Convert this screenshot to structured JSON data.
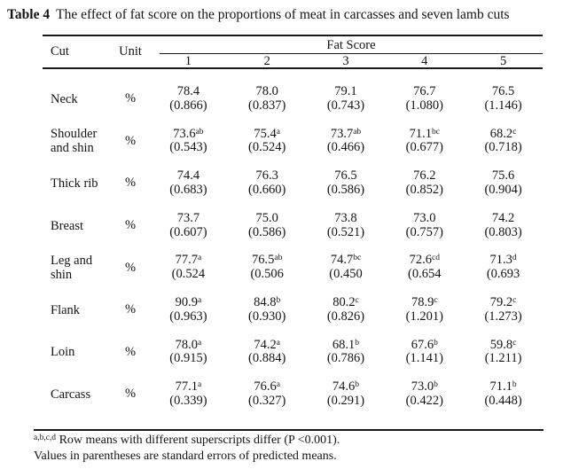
{
  "title": {
    "label": "Table 4",
    "text": "The effect of fat score on the proportions of meat in carcasses and seven lamb cuts"
  },
  "table": {
    "headers": {
      "cut": "Cut",
      "unit": "Unit",
      "group": "Fat Score",
      "scores": [
        "1",
        "2",
        "3",
        "4",
        "5"
      ]
    },
    "rows": [
      {
        "cut": "Neck",
        "unit": "%",
        "cells": [
          {
            "mean": "78.4",
            "sup": "",
            "se": "(0.866)"
          },
          {
            "mean": "78.0",
            "sup": "",
            "se": "(0.837)"
          },
          {
            "mean": "79.1",
            "sup": "",
            "se": "(0.743)"
          },
          {
            "mean": "76.7",
            "sup": "",
            "se": "(1.080)"
          },
          {
            "mean": "76.5",
            "sup": "",
            "se": "(1.146)"
          }
        ]
      },
      {
        "cut": "Shoulder and shin",
        "unit": "%",
        "cells": [
          {
            "mean": "73.6",
            "sup": "ab",
            "se": "(0.543)"
          },
          {
            "mean": "75.4",
            "sup": "a",
            "se": "(0.524)"
          },
          {
            "mean": "73.7",
            "sup": "ab",
            "se": "(0.466)"
          },
          {
            "mean": "71.1",
            "sup": "bc",
            "se": "(0.677)"
          },
          {
            "mean": "68.2",
            "sup": "c",
            "se": "(0.718)"
          }
        ]
      },
      {
        "cut": "Thick rib",
        "unit": "%",
        "cells": [
          {
            "mean": "74.4",
            "sup": "",
            "se": "(0.683)"
          },
          {
            "mean": "76.3",
            "sup": "",
            "se": "(0.660)"
          },
          {
            "mean": "76.5",
            "sup": "",
            "se": "(0.586)"
          },
          {
            "mean": "76.2",
            "sup": "",
            "se": "(0.852)"
          },
          {
            "mean": "75.6",
            "sup": "",
            "se": "(0.904)"
          }
        ]
      },
      {
        "cut": "Breast",
        "unit": "%",
        "cells": [
          {
            "mean": "73.7",
            "sup": "",
            "se": "(0.607)"
          },
          {
            "mean": "75.0",
            "sup": "",
            "se": "(0.586)"
          },
          {
            "mean": "73.8",
            "sup": "",
            "se": "(0.521)"
          },
          {
            "mean": "73.0",
            "sup": "",
            "se": "(0.757)"
          },
          {
            "mean": "74.2",
            "sup": "",
            "se": "(0.803)"
          }
        ]
      },
      {
        "cut": "Leg and shin",
        "unit": "%",
        "cells": [
          {
            "mean": "77.7",
            "sup": "a",
            "se": "(0.524"
          },
          {
            "mean": "76.5",
            "sup": "ab",
            "se": "(0.506"
          },
          {
            "mean": "74.7",
            "sup": "bc",
            "se": "(0.450"
          },
          {
            "mean": "72.6",
            "sup": "cd",
            "se": "(0.654"
          },
          {
            "mean": "71.3",
            "sup": "d",
            "se": "(0.693"
          }
        ]
      },
      {
        "cut": "Flank",
        "unit": "%",
        "cells": [
          {
            "mean": "90.9",
            "sup": "a",
            "se": "(0.963)"
          },
          {
            "mean": "84.8",
            "sup": "b",
            "se": "(0.930)"
          },
          {
            "mean": "80.2",
            "sup": "c",
            "se": "(0.826)"
          },
          {
            "mean": "78.9",
            "sup": "c",
            "se": "(1.201)"
          },
          {
            "mean": "79.2",
            "sup": "c",
            "se": "(1.273)"
          }
        ]
      },
      {
        "cut": "Loin",
        "unit": "%",
        "cells": [
          {
            "mean": "78.0",
            "sup": "a",
            "se": "(0.915)"
          },
          {
            "mean": "74.2",
            "sup": "a",
            "se": "(0.884)"
          },
          {
            "mean": "68.1",
            "sup": "b",
            "se": "(0.786)"
          },
          {
            "mean": "67.6",
            "sup": "b",
            "se": "(1.141)"
          },
          {
            "mean": "59.8",
            "sup": "c",
            "se": "(1.211)"
          }
        ]
      },
      {
        "cut": "Carcass",
        "unit": "%",
        "cells": [
          {
            "mean": "77.1",
            "sup": "a",
            "se": "(0.339)"
          },
          {
            "mean": "76.6",
            "sup": "a",
            "se": "(0.327)"
          },
          {
            "mean": "74.6",
            "sup": "b",
            "se": "(0.291)"
          },
          {
            "mean": "73.0",
            "sup": "b",
            "se": "(0.422)"
          },
          {
            "mean": "71.1",
            "sup": "b",
            "se": "(0.448)"
          }
        ]
      }
    ]
  },
  "footnotes": [
    {
      "sup": "a,b,c,d",
      "text": " Row means with different superscripts differ (P <0.001)."
    },
    {
      "sup": "",
      "text": "Values in parentheses are standard errors of predicted means."
    }
  ]
}
